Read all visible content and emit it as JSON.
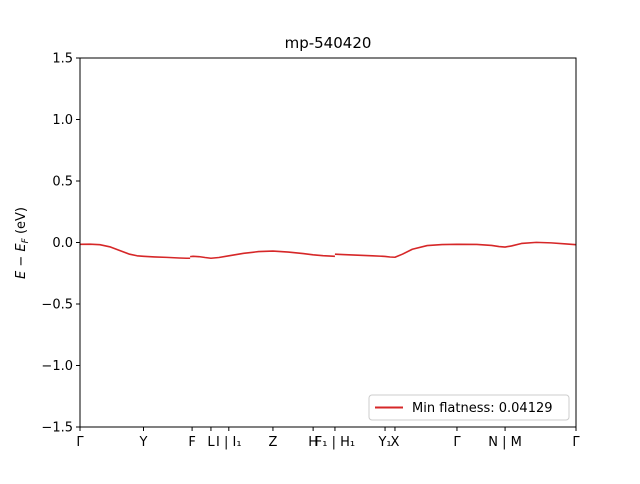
{
  "chart_data": {
    "type": "line",
    "title": "mp-540420",
    "xlabel": "",
    "ylabel": "E − E_F (eV)",
    "ylabel_parts": {
      "main": "E",
      "minus": " − ",
      "sub_base": "E",
      "sub": "F",
      "unit": " (eV)"
    },
    "ylim": [
      -1.5,
      1.5
    ],
    "xlim": [
      0,
      1
    ],
    "yticks": [
      -1.5,
      -1.0,
      -0.5,
      0.0,
      0.5,
      1.0,
      1.5
    ],
    "ytick_labels": [
      "−1.5",
      "−1.0",
      "−0.5",
      "0.0",
      "0.5",
      "1.0",
      "1.5"
    ],
    "xticks": [
      {
        "x": 0.0,
        "label": "Γ"
      },
      {
        "x": 0.128,
        "label": "Y"
      },
      {
        "x": 0.226,
        "label": "F"
      },
      {
        "x": 0.264,
        "label": "L"
      },
      {
        "x": 0.3,
        "label": "I | I₁"
      },
      {
        "x": 0.389,
        "label": "Z"
      },
      {
        "x": 0.47,
        "label": "H"
      },
      {
        "x": 0.514,
        "label": "F₁ | H₁"
      },
      {
        "x": 0.615,
        "label": "Y₁"
      },
      {
        "x": 0.635,
        "label": "X"
      },
      {
        "x": 0.76,
        "label": "Γ"
      },
      {
        "x": 0.857,
        "label": "N | M"
      },
      {
        "x": 1.0,
        "label": "Γ"
      }
    ],
    "grid": false,
    "legend": {
      "position": "lower-right"
    },
    "series": [
      {
        "name": "Min flatness: 0.04129",
        "color": "#d62728",
        "segments": [
          {
            "x": [
              0.0,
              0.02,
              0.04,
              0.06,
              0.08,
              0.1,
              0.115,
              0.128,
              0.15,
              0.175,
              0.2,
              0.215,
              0.222
            ],
            "y": [
              -0.015,
              -0.014,
              -0.018,
              -0.035,
              -0.065,
              -0.095,
              -0.108,
              -0.112,
              -0.117,
              -0.121,
              -0.126,
              -0.128,
              -0.128
            ]
          },
          {
            "x": [
              0.222,
              0.228,
              0.24,
              0.252,
              0.264,
              0.28,
              0.3,
              0.33,
              0.36,
              0.389,
              0.42,
              0.45,
              0.47,
              0.49,
              0.514
            ],
            "y": [
              -0.115,
              -0.112,
              -0.115,
              -0.122,
              -0.128,
              -0.122,
              -0.108,
              -0.088,
              -0.074,
              -0.07,
              -0.078,
              -0.09,
              -0.1,
              -0.107,
              -0.112
            ]
          },
          {
            "x": [
              0.514,
              0.53,
              0.56,
              0.59,
              0.615,
              0.625,
              0.635,
              0.65,
              0.67,
              0.7,
              0.73,
              0.76,
              0.8,
              0.83,
              0.845,
              0.857,
              0.87,
              0.89,
              0.92,
              0.95,
              0.98,
              1.0
            ],
            "y": [
              -0.095,
              -0.098,
              -0.103,
              -0.108,
              -0.113,
              -0.118,
              -0.12,
              -0.095,
              -0.055,
              -0.025,
              -0.017,
              -0.015,
              -0.016,
              -0.024,
              -0.033,
              -0.037,
              -0.028,
              -0.008,
              0.001,
              -0.003,
              -0.012,
              -0.018
            ]
          }
        ]
      }
    ]
  }
}
